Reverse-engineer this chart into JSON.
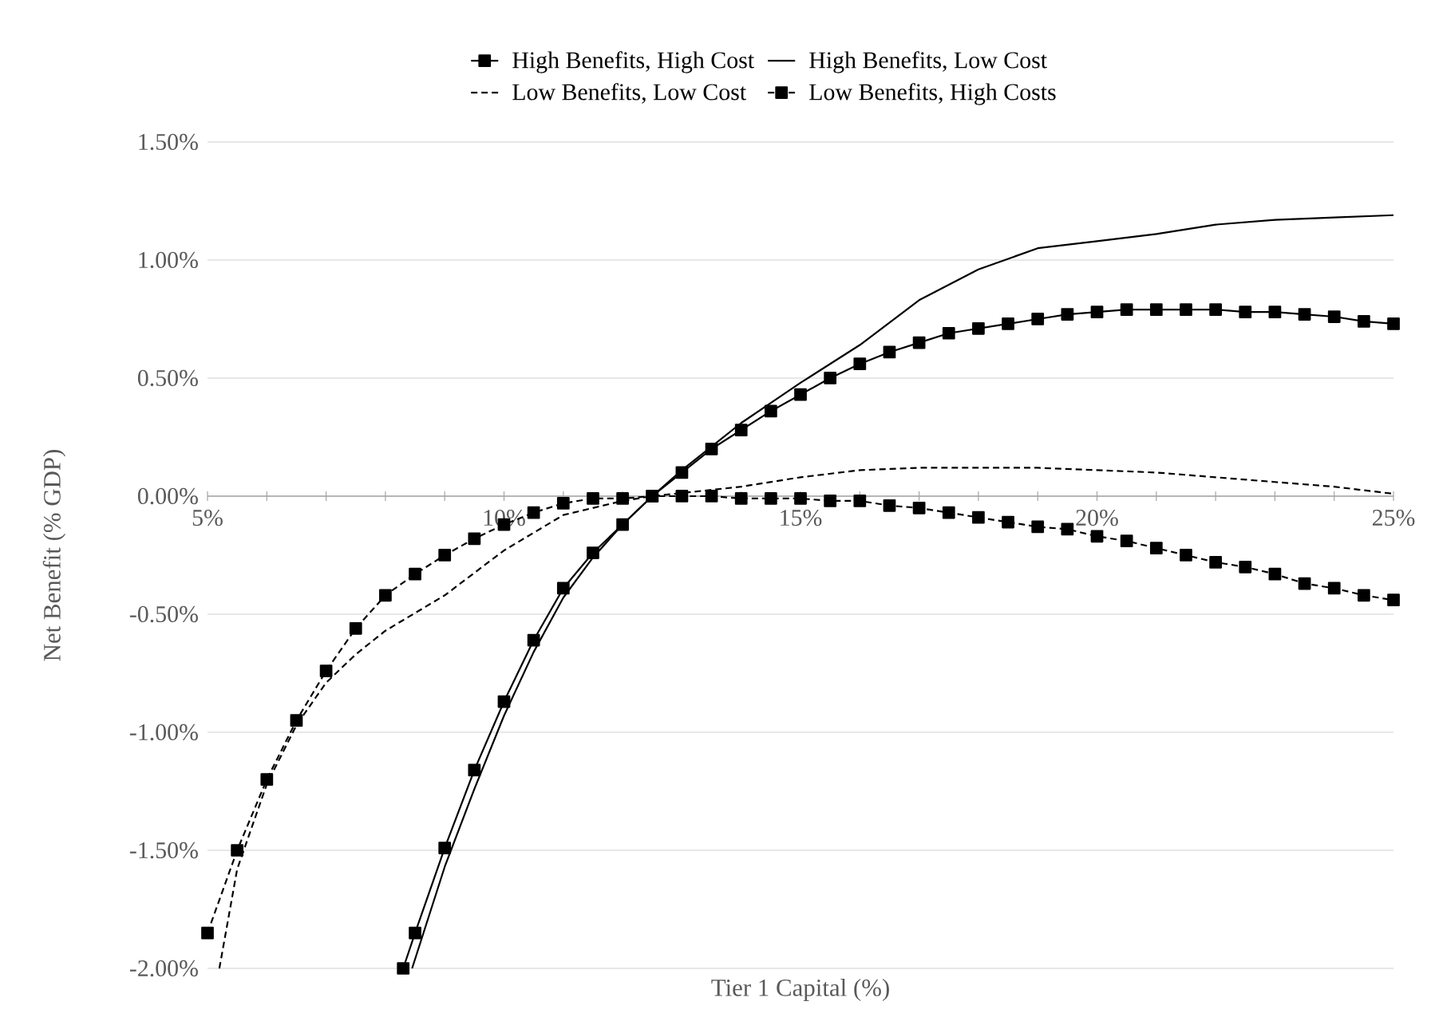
{
  "chart_data": {
    "type": "line",
    "xlabel": "Tier 1 Capital (%)",
    "ylabel": "Net Benefit (% GDP)",
    "xlim": [
      5,
      25
    ],
    "ylim": [
      -2,
      1.5
    ],
    "xticks": [
      {
        "value": 5,
        "label": "5%"
      },
      {
        "value": 6,
        "label": null
      },
      {
        "value": 7,
        "label": null
      },
      {
        "value": 8,
        "label": null
      },
      {
        "value": 9,
        "label": null
      },
      {
        "value": 10,
        "label": "10%"
      },
      {
        "value": 11,
        "label": null
      },
      {
        "value": 12,
        "label": null
      },
      {
        "value": 13,
        "label": null
      },
      {
        "value": 14,
        "label": null
      },
      {
        "value": 15,
        "label": "15%"
      },
      {
        "value": 16,
        "label": null
      },
      {
        "value": 17,
        "label": null
      },
      {
        "value": 18,
        "label": null
      },
      {
        "value": 19,
        "label": null
      },
      {
        "value": 20,
        "label": "20%"
      },
      {
        "value": 21,
        "label": null
      },
      {
        "value": 22,
        "label": null
      },
      {
        "value": 23,
        "label": null
      },
      {
        "value": 24,
        "label": null
      },
      {
        "value": 25,
        "label": "25%"
      }
    ],
    "yticks": [
      {
        "value": -2,
        "label": "-2.00%"
      },
      {
        "value": -1.5,
        "label": "-1.50%"
      },
      {
        "value": -1,
        "label": "-1.00%"
      },
      {
        "value": -0.5,
        "label": "-0.50%"
      },
      {
        "value": 0,
        "label": "0.00%"
      },
      {
        "value": 0.5,
        "label": "0.50%"
      },
      {
        "value": 1,
        "label": "1.00%"
      },
      {
        "value": 1.5,
        "label": "1.50%"
      }
    ],
    "grid": "y",
    "legend": "top",
    "series": [
      {
        "name": "High Benefits, High Cost",
        "color": "#000000",
        "marker": "square",
        "line_style": "solid",
        "x": [
          8.3,
          8.5,
          9,
          9.5,
          10,
          10.5,
          11,
          11.5,
          12,
          12.5,
          13,
          13.5,
          14,
          14.5,
          15,
          15.5,
          16,
          16.5,
          17,
          17.5,
          18,
          18.5,
          19,
          19.5,
          20,
          20.5,
          21,
          21.5,
          22,
          22.5,
          23,
          23.5,
          24,
          24.5,
          25
        ],
        "values": [
          -2.0,
          -1.85,
          -1.49,
          -1.16,
          -0.87,
          -0.61,
          -0.39,
          -0.24,
          -0.12,
          0.0,
          0.1,
          0.2,
          0.28,
          0.36,
          0.43,
          0.5,
          0.56,
          0.61,
          0.65,
          0.69,
          0.71,
          0.73,
          0.75,
          0.77,
          0.78,
          0.79,
          0.79,
          0.79,
          0.79,
          0.78,
          0.78,
          0.77,
          0.76,
          0.74,
          0.73
        ]
      },
      {
        "name": "High Benefits, Low Cost",
        "color": "#000000",
        "marker": "none",
        "line_style": "solid",
        "x": [
          8.45,
          9,
          9.5,
          10,
          10.5,
          11,
          11.5,
          12,
          12.5,
          13,
          13.5,
          14,
          15,
          16,
          17,
          18,
          19,
          20,
          21,
          22,
          23,
          24,
          25
        ],
        "values": [
          -2.0,
          -1.57,
          -1.24,
          -0.93,
          -0.66,
          -0.43,
          -0.26,
          -0.12,
          0.0,
          0.11,
          0.21,
          0.31,
          0.48,
          0.64,
          0.83,
          0.96,
          1.05,
          1.08,
          1.11,
          1.15,
          1.17,
          1.18,
          1.19
        ]
      },
      {
        "name": "Low Benefits, Low Cost",
        "color": "#000000",
        "marker": "none",
        "line_style": "dashed",
        "x": [
          5.2,
          5.5,
          6,
          6.5,
          7,
          7.5,
          8,
          9,
          10,
          11,
          12,
          12.5,
          14,
          15,
          16,
          17,
          18,
          19,
          20,
          21,
          22,
          23,
          24,
          25
        ],
        "values": [
          -2.0,
          -1.58,
          -1.22,
          -0.97,
          -0.79,
          -0.67,
          -0.57,
          -0.42,
          -0.23,
          -0.08,
          -0.02,
          0.0,
          0.04,
          0.08,
          0.11,
          0.12,
          0.12,
          0.12,
          0.11,
          0.1,
          0.08,
          0.06,
          0.04,
          0.01
        ]
      },
      {
        "name": "Low Benefits, High Costs",
        "color": "#000000",
        "marker": "square",
        "line_style": "dashed",
        "x": [
          5,
          5.5,
          6,
          6.5,
          7,
          7.5,
          8,
          8.5,
          9,
          9.5,
          10,
          10.5,
          11,
          11.5,
          12,
          12.5,
          13,
          13.5,
          14,
          14.5,
          15,
          15.5,
          16,
          16.5,
          17,
          17.5,
          18,
          18.5,
          19,
          19.5,
          20,
          20.5,
          21,
          21.5,
          22,
          22.5,
          23,
          23.5,
          24,
          24.5,
          25
        ],
        "values": [
          -1.85,
          -1.5,
          -1.2,
          -0.95,
          -0.74,
          -0.56,
          -0.42,
          -0.33,
          -0.25,
          -0.18,
          -0.12,
          -0.07,
          -0.03,
          -0.01,
          -0.01,
          0.0,
          0.0,
          0.0,
          -0.01,
          -0.01,
          -0.01,
          -0.02,
          -0.02,
          -0.04,
          -0.05,
          -0.07,
          -0.09,
          -0.11,
          -0.13,
          -0.14,
          -0.17,
          -0.19,
          -0.22,
          -0.25,
          -0.28,
          -0.3,
          -0.33,
          -0.37,
          -0.39,
          -0.42,
          -0.44
        ]
      }
    ]
  }
}
